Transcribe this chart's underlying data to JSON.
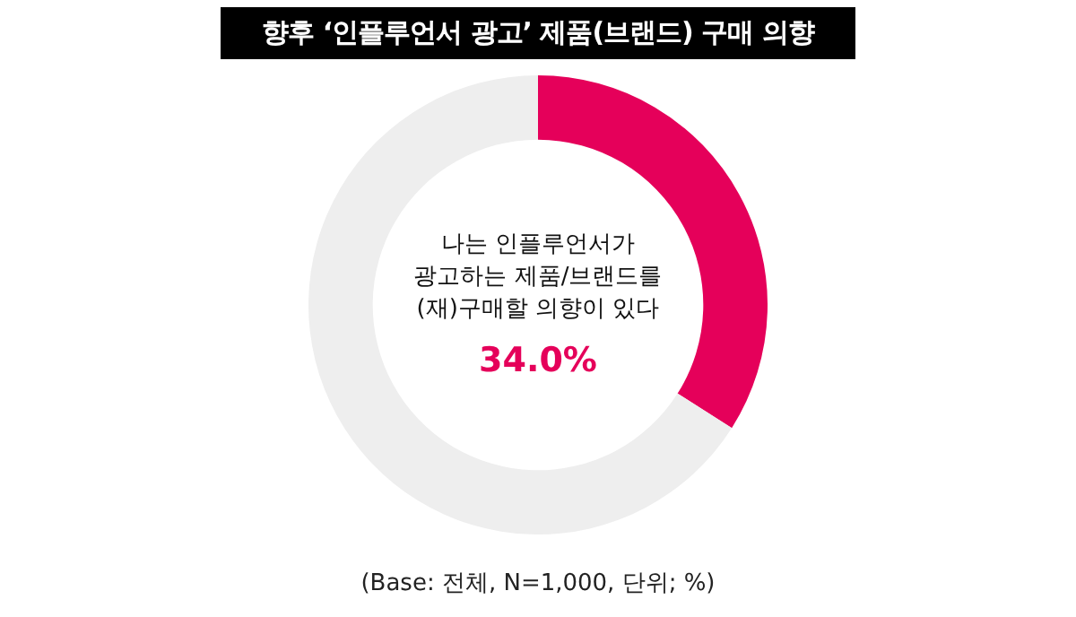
{
  "chart_data": {
    "type": "donut",
    "title": "향후 ‘인플루언서 광고’ 제품(브랜드) 구매 의향",
    "categories": [
      "나는 인플루언서가\n광고하는 제품/브랜드를\n(재)구매할 의향이 있다",
      null
    ],
    "values": [
      34.0,
      66.0
    ],
    "colors": [
      "#e5005a",
      "#eeeeee"
    ],
    "value_labels": [
      "34.0%",
      null
    ],
    "legend": false,
    "annotations": [
      "(Base: 전체, N=1,000, 단위; %)"
    ]
  }
}
